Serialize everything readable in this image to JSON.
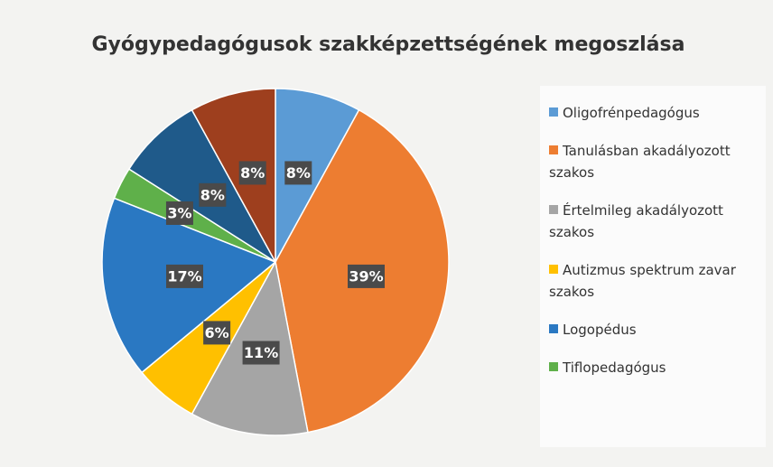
{
  "chart_data": {
    "type": "pie",
    "title": "Gyógypedagógusok szakképzettségének megoszlása",
    "categories": [
      "Oligofrénpedagógus",
      "Tanulásban akadályozott szakos",
      "Értelmileg akadályozott szakos",
      "Autizmus spektrum zavar szakos",
      "Logopédus",
      "Tiflopedagógus",
      null,
      null
    ],
    "values": [
      8,
      39,
      11,
      6,
      17,
      3,
      8,
      8
    ],
    "value_labels": [
      "8%",
      "39%",
      "11%",
      "6%",
      "17%",
      "3%",
      "8%",
      "8%"
    ],
    "colors": [
      "#5b9bd5",
      "#ed7d31",
      "#a5a5a5",
      "#ffc000",
      "#2a78c2",
      "#5fb04a",
      "#1f5a8a",
      "#9e3f1e"
    ],
    "legend": "right"
  }
}
